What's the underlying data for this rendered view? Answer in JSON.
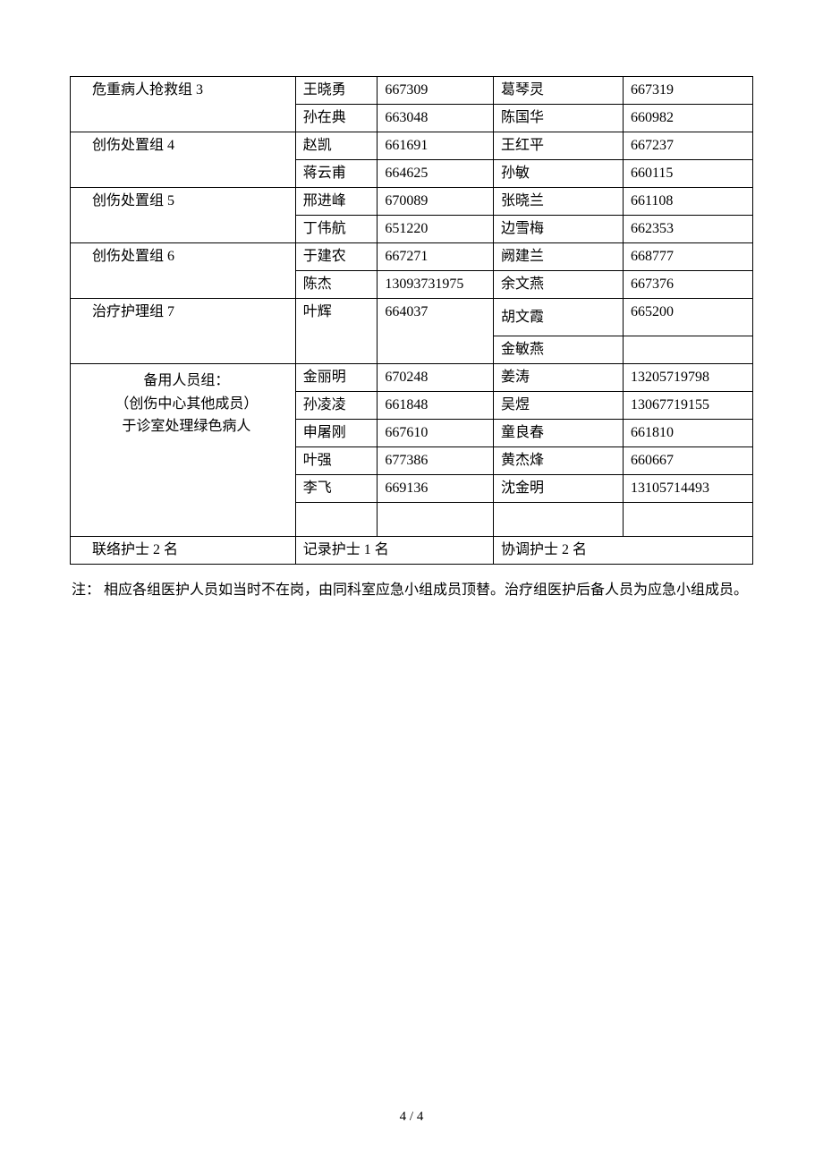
{
  "table": {
    "rows": [
      {
        "group": "危重病人抢救组 3",
        "rowspan": 2,
        "entries": [
          {
            "n1": "王晓勇",
            "p1": "667309",
            "n2": "葛琴灵",
            "p2": "667319"
          },
          {
            "n1": "孙在典",
            "p1": "663048",
            "n2": "陈国华",
            "p2": "660982"
          }
        ]
      },
      {
        "group": "创伤处置组 4",
        "rowspan": 2,
        "entries": [
          {
            "n1": "赵凯",
            "p1": "661691",
            "n2": "王红平",
            "p2": "667237"
          },
          {
            "n1": "蒋云甫",
            "p1": "664625",
            "n2": "孙敏",
            "p2": "660115"
          }
        ]
      },
      {
        "group": "创伤处置组 5",
        "rowspan": 2,
        "entries": [
          {
            "n1": "邢进峰",
            "p1": "670089",
            "n2": "张晓兰",
            "p2": "661108"
          },
          {
            "n1": "丁伟航",
            "p1": "651220",
            "n2": "边雪梅",
            "p2": "662353"
          }
        ]
      },
      {
        "group": "创伤处置组 6",
        "rowspan": 2,
        "entries": [
          {
            "n1": "于建农",
            "p1": "667271",
            "n2": "阙建兰",
            "p2": "668777"
          },
          {
            "n1": "陈杰",
            "p1": "13093731975",
            "n2": "余文燕",
            "p2": "667376"
          }
        ]
      }
    ],
    "group7": {
      "label": "治疗护理组 7",
      "r1": {
        "n1": "叶辉",
        "p1": "664037",
        "n2": "胡文霞",
        "p2": "665200"
      },
      "r2": {
        "n2": "金敏燕"
      }
    },
    "backup": {
      "label_l1": "备用人员组：",
      "label_l2": "（创伤中心其他成员）",
      "label_l3": "于诊室处理绿色病人",
      "rows": [
        {
          "n1": "金丽明",
          "p1": "670248",
          "n2": "姜涛",
          "p2": "13205719798"
        },
        {
          "n1": "孙凌凌",
          "p1": "661848",
          "n2": "吴煜",
          "p2": "13067719155"
        },
        {
          "n1": "申屠刚",
          "p1": "667610",
          "n2": "童良春",
          "p2": "661810"
        },
        {
          "n1": "叶强",
          "p1": "677386",
          "n2": "黄杰烽",
          "p2": "660667"
        },
        {
          "n1": "李飞",
          "p1": "669136",
          "n2": "沈金明",
          "p2": "13105714493"
        }
      ]
    },
    "footer": {
      "c1": "联络护士 2 名",
      "c2": "记录护士 1 名",
      "c3": "协调护士 2 名"
    }
  },
  "note": "注：  相应各组医护人员如当时不在岗，由同科室应急小组成员顶替。治疗组医护后备人员为应急小组成员。",
  "pageNumber": "4  /  4"
}
